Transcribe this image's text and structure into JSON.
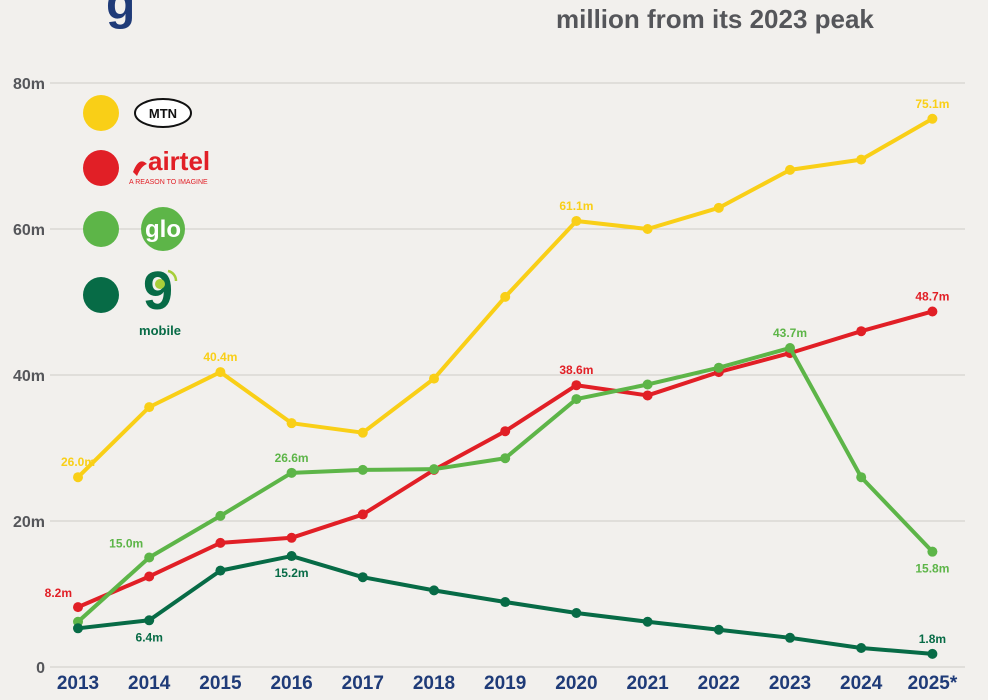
{
  "headline": {
    "line": "million from its 2023 peak",
    "fragment": "g"
  },
  "colors": {
    "mtn": "#f9cf17",
    "airtel": "#e11f26",
    "glo": "#5db548",
    "ninemobile": "#076b46",
    "grid": "#cfccc7",
    "axis_text": "#55565a",
    "year_text": "#1f3b78"
  },
  "legend": [
    {
      "series": "mtn",
      "logo_text": "MTN",
      "logo_icon": "mtn-oval-logo"
    },
    {
      "series": "airtel",
      "logo_text": "airtel",
      "tagline": "A REASON TO IMAGINE",
      "logo_icon": "airtel-swoosh-logo"
    },
    {
      "series": "glo",
      "logo_text": "glo",
      "logo_icon": "glo-globe-logo"
    },
    {
      "series": "ninemobile",
      "logo_text": "9",
      "tagline": "mobile",
      "logo_icon": "9mobile-logo"
    }
  ],
  "chart_data": {
    "type": "line",
    "x": [
      "2013",
      "2014",
      "2015",
      "2016",
      "2017",
      "2018",
      "2019",
      "2020",
      "2021",
      "2022",
      "2023",
      "2024",
      "2025*"
    ],
    "ylim": [
      0,
      80
    ],
    "yticks": [
      0,
      20,
      40,
      60,
      80
    ],
    "ytick_labels": [
      "0",
      "20m",
      "40m",
      "60m",
      "80m"
    ],
    "grid": true,
    "series": [
      {
        "key": "mtn",
        "values": [
          26.0,
          35.6,
          40.4,
          33.4,
          32.1,
          39.5,
          50.7,
          61.1,
          60.0,
          62.9,
          68.1,
          69.5,
          75.1
        ],
        "labels": [
          {
            "index": 0,
            "text": "26.0m",
            "pos": "above"
          },
          {
            "index": 2,
            "text": "40.4m",
            "pos": "above"
          },
          {
            "index": 7,
            "text": "61.1m",
            "pos": "above"
          },
          {
            "index": 12,
            "text": "75.1m",
            "pos": "above"
          }
        ]
      },
      {
        "key": "airtel",
        "values": [
          8.2,
          12.4,
          17.0,
          17.7,
          20.9,
          27.0,
          32.3,
          38.6,
          37.2,
          40.4,
          43.0,
          46.0,
          48.7
        ],
        "labels": [
          {
            "index": 0,
            "text": "8.2m",
            "pos": "above-left"
          },
          {
            "index": 7,
            "text": "38.6m",
            "pos": "above"
          },
          {
            "index": 12,
            "text": "48.7m",
            "pos": "above"
          }
        ]
      },
      {
        "key": "glo",
        "values": [
          6.2,
          15.0,
          20.7,
          26.6,
          27.0,
          27.1,
          28.6,
          36.7,
          38.7,
          41.0,
          43.7,
          26.0,
          15.8
        ],
        "labels": [
          {
            "index": 1,
            "text": "15.0m",
            "pos": "above-left"
          },
          {
            "index": 3,
            "text": "26.6m",
            "pos": "above"
          },
          {
            "index": 10,
            "text": "43.7m",
            "pos": "above"
          },
          {
            "index": 12,
            "text": "15.8m",
            "pos": "below"
          }
        ]
      },
      {
        "key": "ninemobile",
        "values": [
          5.3,
          6.4,
          13.2,
          15.2,
          12.3,
          10.5,
          8.9,
          7.4,
          6.2,
          5.1,
          4.0,
          2.6,
          1.8
        ],
        "labels": [
          {
            "index": 1,
            "text": "6.4m",
            "pos": "below"
          },
          {
            "index": 3,
            "text": "15.2m",
            "pos": "below"
          },
          {
            "index": 12,
            "text": "1.8m",
            "pos": "above"
          }
        ]
      }
    ]
  }
}
